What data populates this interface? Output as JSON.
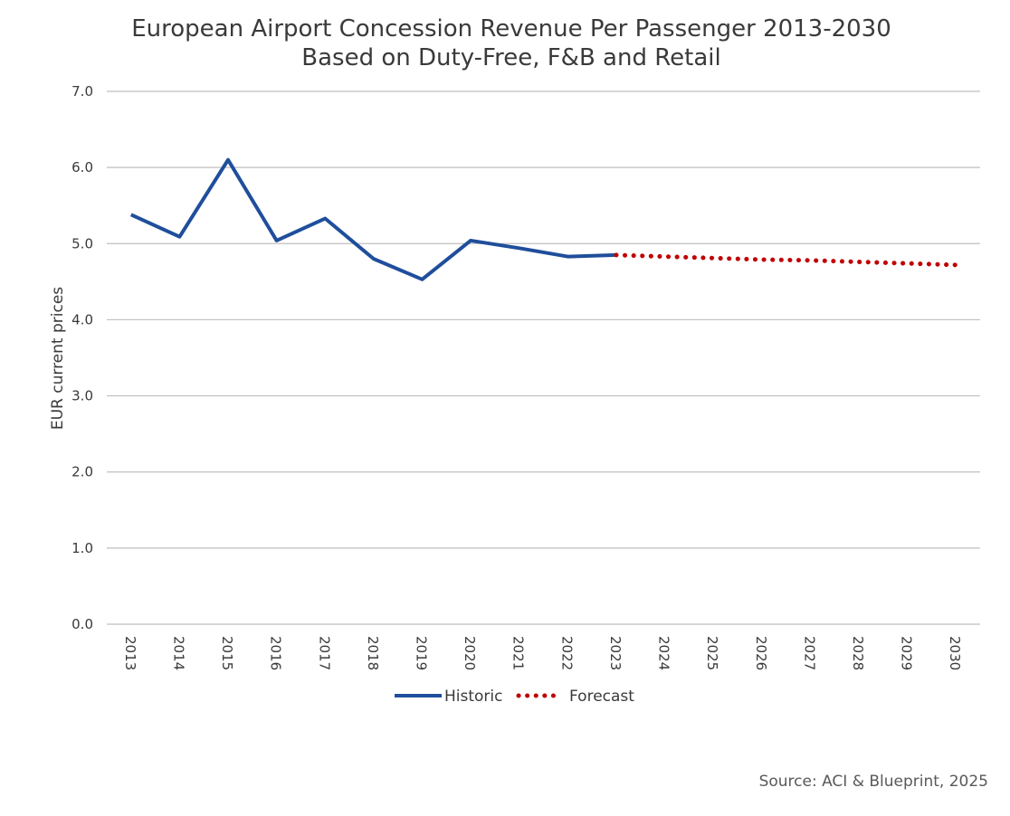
{
  "chart_data": {
    "type": "line",
    "title": [
      "European Airport Concession Revenue Per Passenger 2013-2030",
      "Based on Duty-Free, F&B and Retail"
    ],
    "ylabel": "EUR current prices",
    "xlabel": "",
    "ylim": [
      0,
      7
    ],
    "yticks": [
      "0.0",
      "1.0",
      "2.0",
      "3.0",
      "4.0",
      "5.0",
      "6.0",
      "7.0"
    ],
    "categories": [
      "2013",
      "2014",
      "2015",
      "2016",
      "2017",
      "2018",
      "2019",
      "2020",
      "2021",
      "2022",
      "2023",
      "2024",
      "2025",
      "2026",
      "2027",
      "2028",
      "2029",
      "2030"
    ],
    "grid": true,
    "legend_position": "bottom",
    "series": [
      {
        "name": "Historic",
        "style": "solid",
        "color": "#1f4e9c",
        "x": [
          "2013",
          "2014",
          "2015",
          "2016",
          "2017",
          "2018",
          "2019",
          "2020",
          "2021",
          "2022",
          "2023"
        ],
        "values": [
          5.38,
          5.09,
          6.1,
          5.04,
          5.33,
          4.8,
          4.53,
          5.04,
          4.94,
          4.83,
          4.85
        ]
      },
      {
        "name": "Forecast",
        "style": "dotted",
        "color": "#c00000",
        "x": [
          "2023",
          "2024",
          "2025",
          "2026",
          "2027",
          "2028",
          "2029",
          "2030"
        ],
        "values": [
          4.85,
          4.83,
          4.81,
          4.79,
          4.78,
          4.76,
          4.74,
          4.72
        ]
      }
    ]
  },
  "source": "Source: ACI & Blueprint, 2025"
}
